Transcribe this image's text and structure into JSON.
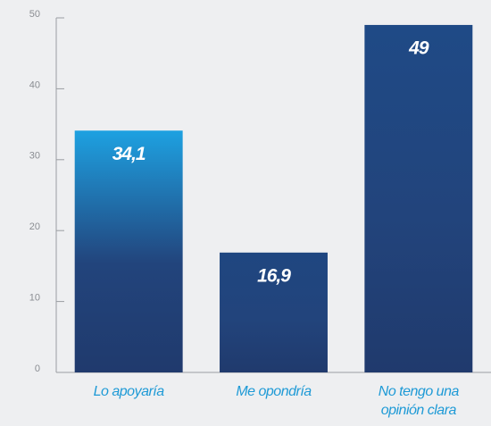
{
  "chart_data": {
    "type": "bar",
    "categories": [
      "Lo apoyaría",
      "Me opondría",
      "No tengo una opinión clara"
    ],
    "values": [
      34.1,
      16.9,
      49
    ],
    "value_labels": [
      "34,1",
      "16,9",
      "49"
    ],
    "colors": [
      "#1ea1e1",
      "#1f4680",
      "#1f4a86"
    ],
    "gradient_end": "#203a6d",
    "ylim": [
      0,
      50
    ],
    "yticks": [
      0,
      10,
      20,
      30,
      40,
      50
    ],
    "grid": false
  }
}
